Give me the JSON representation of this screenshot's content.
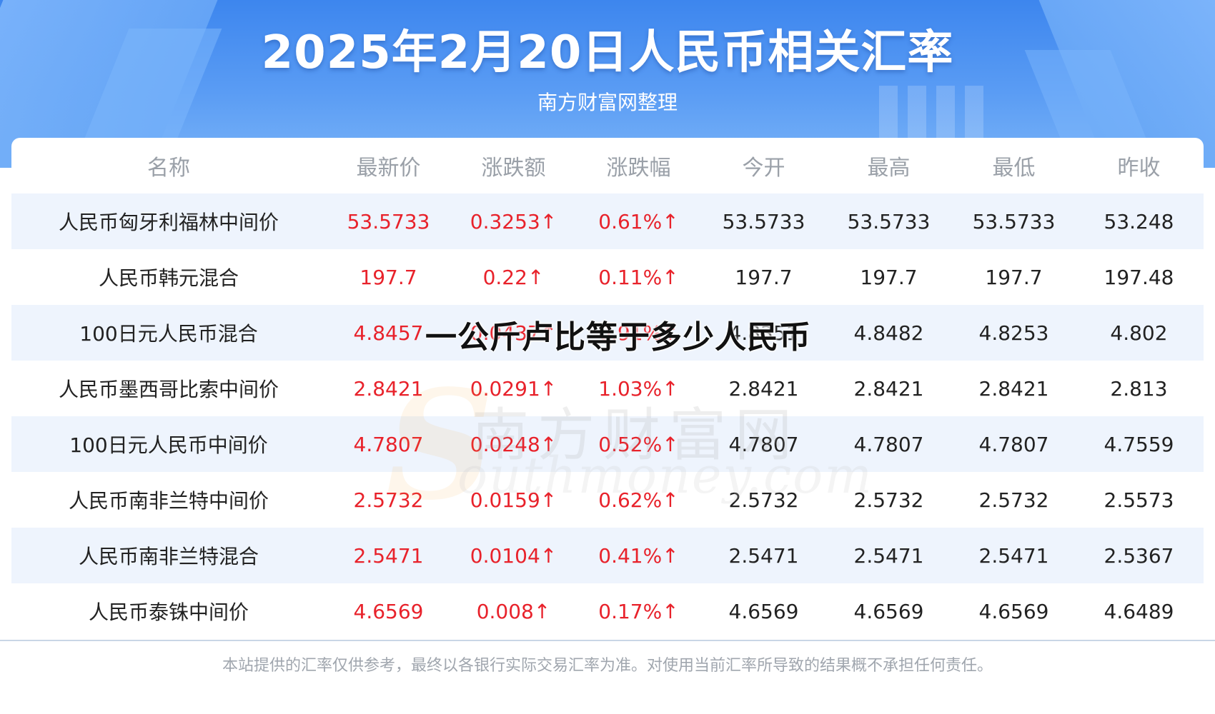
{
  "banner": {
    "title": "2025年2月20日人民币相关汇率",
    "subtitle": "南方财富网整理"
  },
  "overlay_title": "一公斤卢比等于多少人民币",
  "watermark": {
    "cn": "南方财富网",
    "en": "outhmoney.com"
  },
  "table": {
    "headers": [
      "名称",
      "最新价",
      "涨跌额",
      "涨跌幅",
      "今开",
      "最高",
      "最低",
      "昨收"
    ],
    "rows": [
      {
        "name": "人民币匈牙利福林中间价",
        "latest": "53.5733",
        "change": "0.3253↑",
        "change_pct": "0.61%↑",
        "open": "53.5733",
        "high": "53.5733",
        "low": "53.5733",
        "prev_close": "53.248"
      },
      {
        "name": "人民币韩元混合",
        "latest": "197.7",
        "change": "0.22↑",
        "change_pct": "0.11%↑",
        "open": "197.7",
        "high": "197.7",
        "low": "197.7",
        "prev_close": "197.48"
      },
      {
        "name": "100日元人民币混合",
        "latest": "4.8457",
        "change": "0.0437↑",
        "change_pct": "0.91%↑",
        "open": "4.8351",
        "high": "4.8482",
        "low": "4.8253",
        "prev_close": "4.802"
      },
      {
        "name": "人民币墨西哥比索中间价",
        "latest": "2.8421",
        "change": "0.0291↑",
        "change_pct": "1.03%↑",
        "open": "2.8421",
        "high": "2.8421",
        "low": "2.8421",
        "prev_close": "2.813"
      },
      {
        "name": "100日元人民币中间价",
        "latest": "4.7807",
        "change": "0.0248↑",
        "change_pct": "0.52%↑",
        "open": "4.7807",
        "high": "4.7807",
        "low": "4.7807",
        "prev_close": "4.7559"
      },
      {
        "name": "人民币南非兰特中间价",
        "latest": "2.5732",
        "change": "0.0159↑",
        "change_pct": "0.62%↑",
        "open": "2.5732",
        "high": "2.5732",
        "low": "2.5732",
        "prev_close": "2.5573"
      },
      {
        "name": "人民币南非兰特混合",
        "latest": "2.5471",
        "change": "0.0104↑",
        "change_pct": "0.41%↑",
        "open": "2.5471",
        "high": "2.5471",
        "low": "2.5471",
        "prev_close": "2.5367"
      },
      {
        "name": "人民币泰铢中间价",
        "latest": "4.6569",
        "change": "0.008↑",
        "change_pct": "0.17%↑",
        "open": "4.6569",
        "high": "4.6569",
        "low": "4.6569",
        "prev_close": "4.6489"
      }
    ]
  },
  "footer": {
    "disclaimer": "本站提供的汇率仅供参考，最终以各银行实际交易汇率为准。对使用当前汇率所导致的结果概不承担任何责任。"
  },
  "colors": {
    "banner_blue": "#4a90f0",
    "row_stripe": "#eef4fd",
    "up_red": "#e8222b",
    "header_gray": "#9aa0a8"
  }
}
